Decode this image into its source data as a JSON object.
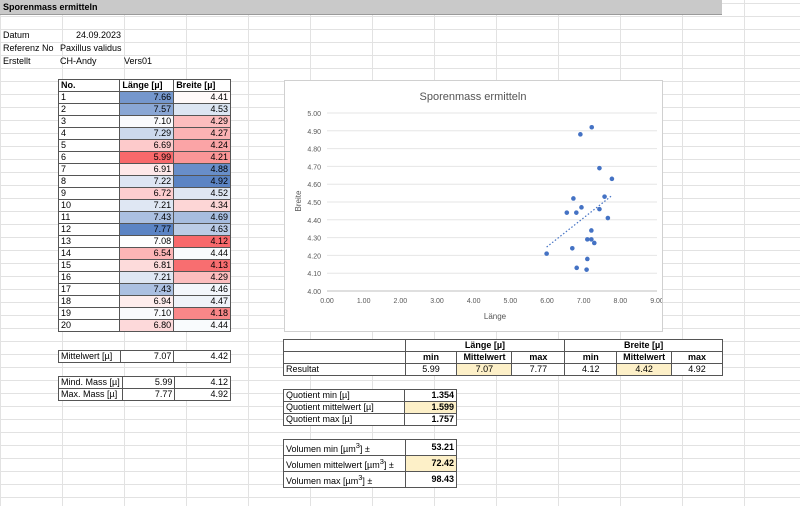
{
  "title": "Sporenmass ermitteln",
  "meta": {
    "datum_label": "Datum",
    "datum_value": "24.09.2023",
    "ref_label": "Referenz No",
    "ref_value": "Paxillus validus",
    "erstellt_label": "Erstellt",
    "erstellt_value": "CH-Andy",
    "version": "Vers01"
  },
  "table": {
    "headers": [
      "No.",
      "Länge [µ]",
      "Breite [µ]"
    ],
    "rows": [
      {
        "no": "1",
        "laenge": "7.66",
        "breite": "4.41"
      },
      {
        "no": "2",
        "laenge": "7.57",
        "breite": "4.53"
      },
      {
        "no": "3",
        "laenge": "7.10",
        "breite": "4.29"
      },
      {
        "no": "4",
        "laenge": "7.29",
        "breite": "4.27"
      },
      {
        "no": "5",
        "laenge": "6.69",
        "breite": "4.24"
      },
      {
        "no": "6",
        "laenge": "5.99",
        "breite": "4.21"
      },
      {
        "no": "7",
        "laenge": "6.91",
        "breite": "4.88"
      },
      {
        "no": "8",
        "laenge": "7.22",
        "breite": "4.92"
      },
      {
        "no": "9",
        "laenge": "6.72",
        "breite": "4.52"
      },
      {
        "no": "10",
        "laenge": "7.21",
        "breite": "4.34"
      },
      {
        "no": "11",
        "laenge": "7.43",
        "breite": "4.69"
      },
      {
        "no": "12",
        "laenge": "7.77",
        "breite": "4.63"
      },
      {
        "no": "13",
        "laenge": "7.08",
        "breite": "4.12"
      },
      {
        "no": "14",
        "laenge": "6.54",
        "breite": "4.44"
      },
      {
        "no": "15",
        "laenge": "6.81",
        "breite": "4.13"
      },
      {
        "no": "16",
        "laenge": "7.21",
        "breite": "4.29"
      },
      {
        "no": "17",
        "laenge": "7.43",
        "breite": "4.46"
      },
      {
        "no": "18",
        "laenge": "6.94",
        "breite": "4.47"
      },
      {
        "no": "19",
        "laenge": "7.10",
        "breite": "4.18"
      },
      {
        "no": "20",
        "laenge": "6.80",
        "breite": "4.44"
      }
    ]
  },
  "colors": {
    "high": "#5b84c4",
    "low": "#f8696b",
    "mid": "#ffffff",
    "point": "#4472c4"
  },
  "summary": {
    "mittelwert_label": "Mittelwert [µ]",
    "mittelwert_laenge": "7.07",
    "mittelwert_breite": "4.42",
    "mind_label": "Mind. Mass [µ]",
    "mind_laenge": "5.99",
    "mind_breite": "4.12",
    "max_label": "Max. Mass [µ]",
    "max_laenge": "7.77",
    "max_breite": "4.92"
  },
  "result": {
    "laenge_header": "Länge [µ]",
    "breite_header": "Breite [µ]",
    "min_label": "min",
    "mittel_label": "Mittelwert",
    "max_label": "max",
    "row_label": "Resultat",
    "values": [
      "5.99",
      "7.07",
      "7.77",
      "4.12",
      "4.42",
      "4.92"
    ]
  },
  "quotient": [
    {
      "label": "Quotient min [µ]",
      "value": "1.354"
    },
    {
      "label": "Quotient mittelwert [µ]",
      "value": "1.599"
    },
    {
      "label": "Quotient max [µ]",
      "value": "1.757"
    }
  ],
  "volumen": [
    {
      "label_pre": "Volumen min [µm",
      "label_post": "] ±",
      "value": "53.21"
    },
    {
      "label_pre": "Volumen mittelwert [µm",
      "label_post": "] ±",
      "value": "72.42"
    },
    {
      "label_pre": "Volumen max [µm",
      "label_post": "] ±",
      "value": "98.43"
    }
  ],
  "chart_data": {
    "type": "scatter",
    "title": "Sporenmass ermitteln",
    "xlabel": "Länge",
    "ylabel": "Breite",
    "xlim": [
      0,
      9
    ],
    "ylim": [
      4.0,
      5.0
    ],
    "xticks": [
      "0.00",
      "1.00",
      "2.00",
      "3.00",
      "4.00",
      "5.00",
      "6.00",
      "7.00",
      "8.00",
      "9.00"
    ],
    "yticks": [
      "4.00",
      "4.10",
      "4.20",
      "4.30",
      "4.40",
      "4.50",
      "4.60",
      "4.70",
      "4.80",
      "4.90",
      "5.00"
    ],
    "trendline": true,
    "points": [
      [
        7.66,
        4.41
      ],
      [
        7.57,
        4.53
      ],
      [
        7.1,
        4.29
      ],
      [
        7.29,
        4.27
      ],
      [
        6.69,
        4.24
      ],
      [
        5.99,
        4.21
      ],
      [
        6.91,
        4.88
      ],
      [
        7.22,
        4.92
      ],
      [
        6.72,
        4.52
      ],
      [
        7.21,
        4.34
      ],
      [
        7.43,
        4.69
      ],
      [
        7.77,
        4.63
      ],
      [
        7.08,
        4.12
      ],
      [
        6.54,
        4.44
      ],
      [
        6.81,
        4.13
      ],
      [
        7.21,
        4.29
      ],
      [
        7.43,
        4.46
      ],
      [
        6.94,
        4.47
      ],
      [
        7.1,
        4.18
      ],
      [
        6.8,
        4.44
      ]
    ]
  }
}
